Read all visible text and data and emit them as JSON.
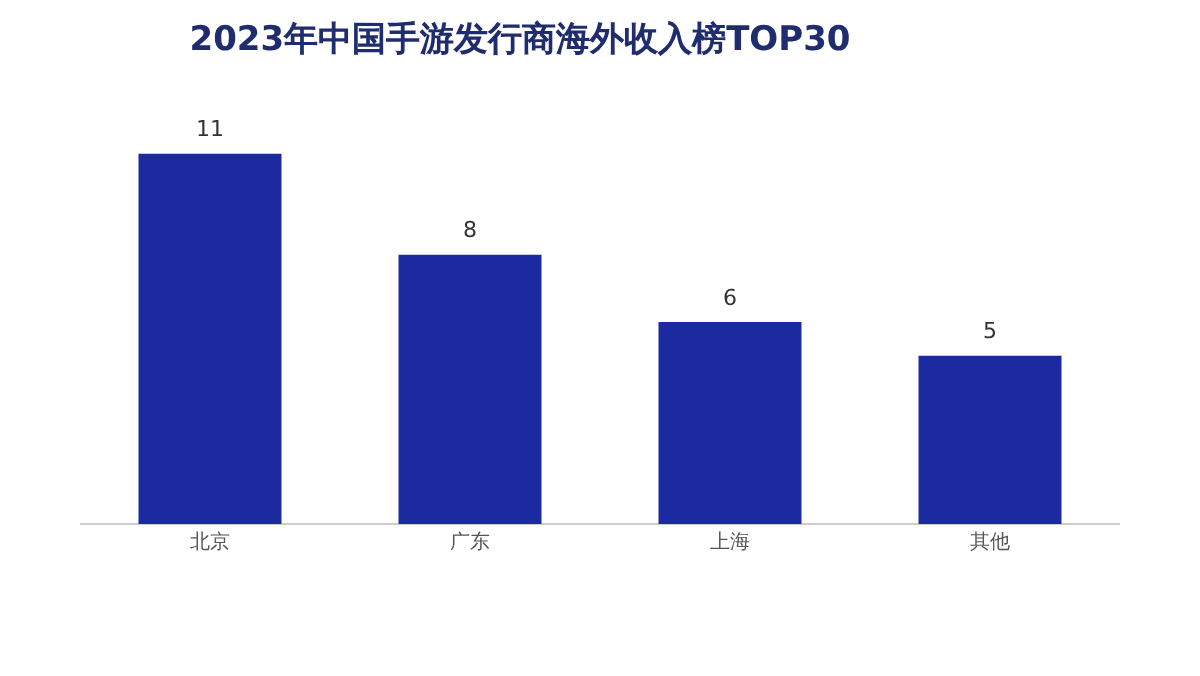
{
  "chart_data": {
    "type": "bar",
    "title": "2023年中国手游发行商海外收入榜TOP30",
    "categories": [
      "北京",
      "广东",
      "上海",
      "其他"
    ],
    "values": [
      11,
      8,
      6,
      5
    ],
    "color": "#1b2a9e",
    "data_labels": true,
    "tick_labels": "x",
    "grid": false,
    "legend": false
  }
}
